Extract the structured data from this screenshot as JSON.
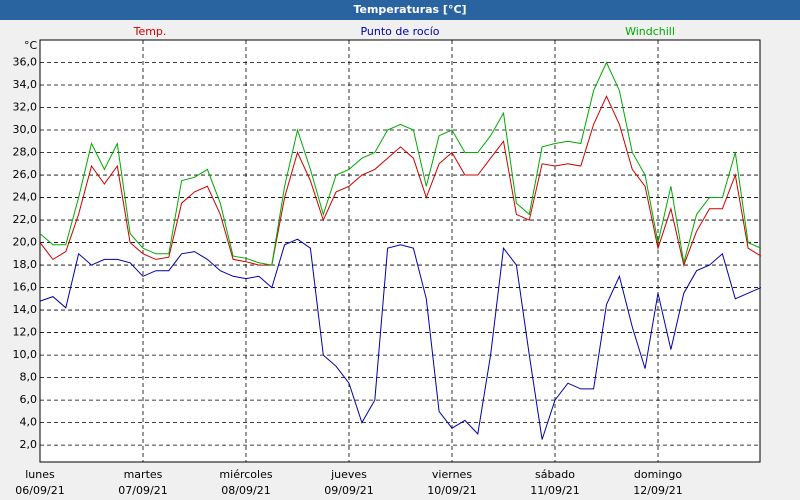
{
  "chart_data": {
    "type": "line",
    "title": "Temperaturas [°C]",
    "y_unit": "°C",
    "categories": [
      "lunes\n06/09/21",
      null,
      null,
      null,
      null,
      null,
      null,
      null,
      "martes\n07/09/21",
      null,
      null,
      null,
      null,
      null,
      null,
      null,
      "miércoles\n08/09/21",
      null,
      null,
      null,
      null,
      null,
      null,
      null,
      "jueves\n09/09/21",
      null,
      null,
      null,
      null,
      null,
      null,
      null,
      "viernes\n10/09/21",
      null,
      null,
      null,
      null,
      null,
      null,
      null,
      "sábado\n11/09/21",
      null,
      null,
      null,
      null,
      null,
      null,
      null,
      "domingo\n12/09/21",
      null,
      null,
      null,
      null,
      null,
      null,
      null,
      null
    ],
    "series": [
      {
        "name": "Temp.",
        "color": "#cc0000",
        "values": [
          20.0,
          18.5,
          19.2,
          22.5,
          26.8,
          25.2,
          26.8,
          20.0,
          19.0,
          18.5,
          18.7,
          23.5,
          24.5,
          25.0,
          22.5,
          18.5,
          18.3,
          18.0,
          18.0,
          24.0,
          28.0,
          25.5,
          22.0,
          24.5,
          25.0,
          26.0,
          26.5,
          27.5,
          28.5,
          27.5,
          24.0,
          27.0,
          28.0,
          26.0,
          26.0,
          27.5,
          29.0,
          22.5,
          22.0,
          27.0,
          26.8,
          27.0,
          26.8,
          30.5,
          33.0,
          30.5,
          26.5,
          25.0,
          19.5,
          23.0,
          18.0,
          21.0,
          23.0,
          23.0,
          26.0,
          19.5,
          18.8
        ]
      },
      {
        "name": "Punto de rocío",
        "color": "#0000aa",
        "values": [
          14.8,
          15.2,
          14.2,
          19.0,
          18.0,
          18.5,
          18.5,
          18.2,
          17.0,
          17.5,
          17.5,
          19.0,
          19.2,
          18.5,
          17.5,
          17.0,
          16.8,
          17.0,
          16.0,
          19.8,
          20.3,
          19.5,
          10.0,
          9.0,
          7.5,
          4.0,
          6.0,
          19.5,
          19.8,
          19.5,
          15.0,
          5.0,
          3.5,
          4.2,
          3.0,
          10.0,
          19.5,
          18.0,
          10.0,
          2.5,
          6.0,
          7.5,
          7.0,
          7.0,
          14.5,
          17.0,
          12.5,
          8.8,
          15.5,
          10.5,
          15.5,
          17.5,
          18.0,
          19.0,
          15.0,
          15.5,
          16.0
        ]
      },
      {
        "name": "Windchill",
        "color": "#00aa00",
        "values": [
          20.8,
          19.8,
          19.8,
          24.0,
          28.8,
          26.5,
          28.8,
          20.8,
          19.5,
          19.0,
          19.0,
          25.5,
          25.8,
          26.5,
          23.5,
          18.8,
          18.6,
          18.2,
          18.0,
          25.0,
          30.0,
          26.5,
          22.5,
          26.0,
          26.5,
          27.5,
          28.0,
          30.0,
          30.5,
          30.0,
          25.0,
          29.5,
          30.0,
          28.0,
          28.0,
          29.5,
          31.5,
          23.5,
          22.5,
          28.5,
          28.8,
          29.0,
          28.8,
          33.5,
          36.0,
          33.5,
          28.0,
          26.0,
          20.0,
          25.0,
          18.2,
          22.5,
          24.0,
          24.0,
          28.0,
          20.0,
          19.5
        ]
      }
    ],
    "ylim": [
      0.5,
      38
    ],
    "yticks": [
      {
        "value": 2,
        "label": "2,0"
      },
      {
        "value": 4,
        "label": "4,0"
      },
      {
        "value": 6,
        "label": "6,0"
      },
      {
        "value": 8,
        "label": "8,0"
      },
      {
        "value": 10,
        "label": "10,0"
      },
      {
        "value": 12,
        "label": "12,0"
      },
      {
        "value": 14,
        "label": "14,0"
      },
      {
        "value": 16,
        "label": "16,0"
      },
      {
        "value": 18,
        "label": "18,0"
      },
      {
        "value": 20,
        "label": "20,0"
      },
      {
        "value": 22,
        "label": "22,0"
      },
      {
        "value": 24,
        "label": "24,0"
      },
      {
        "value": 26,
        "label": "26,0"
      },
      {
        "value": 28,
        "label": "28,0"
      },
      {
        "value": 30,
        "label": "30,0"
      },
      {
        "value": 32,
        "label": "32,0"
      },
      {
        "value": 34,
        "label": "34,0"
      },
      {
        "value": 36,
        "label": "36,0"
      }
    ],
    "grid": true
  }
}
